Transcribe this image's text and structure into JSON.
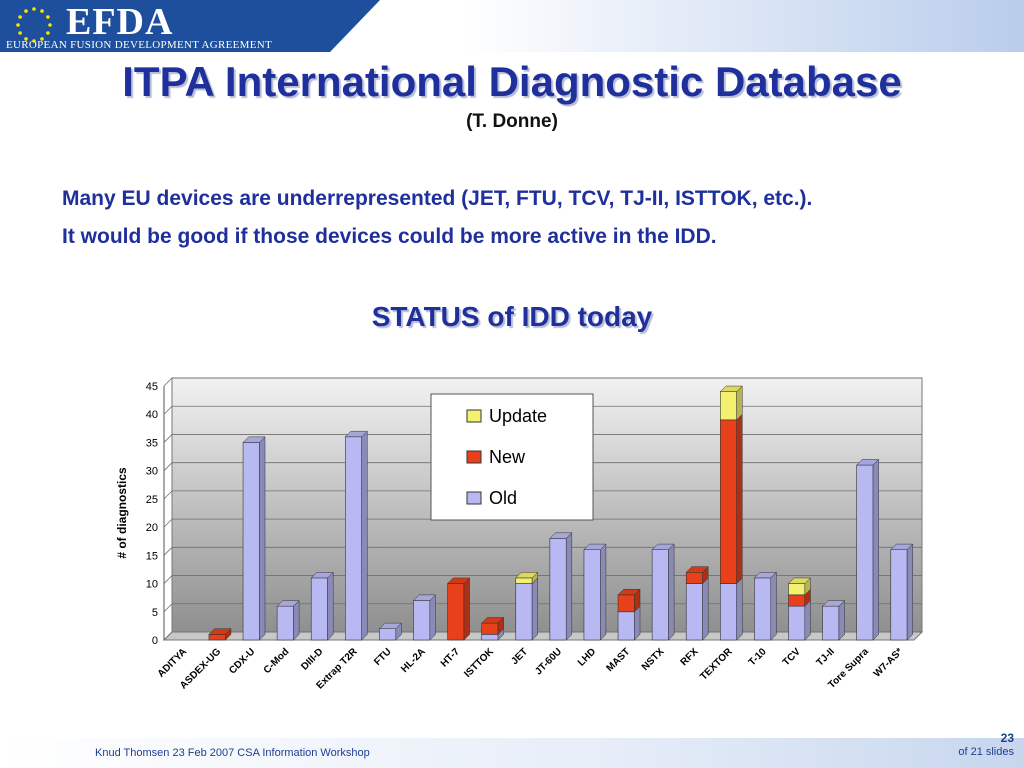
{
  "header": {
    "logo_text": "EFDA",
    "logo_subtitle": "EUROPEAN FUSION DEVELOPMENT AGREEMENT"
  },
  "slide": {
    "title": "ITPA International Diagnostic Database",
    "author": "(T. Donne)",
    "note_line1": "Many EU devices are underrepresented (JET, FTU, TCV, TJ-II, ISTTOK, etc.).",
    "note_line2": "It would be good if those devices could be more active in the IDD.",
    "chart_heading": "STATUS of IDD today"
  },
  "footer": {
    "left": "Knud Thomsen 23 Feb 2007 CSA Information Workshop",
    "page_number": "23",
    "page_of": "of 21 slides"
  },
  "chart_data": {
    "type": "bar",
    "stacked": true,
    "categories": [
      "ADITYA",
      "ASDEX-UG",
      "CDX-U",
      "C-Mod",
      "DIII-D",
      "Extrap T2R",
      "FTU",
      "HL-2A",
      "HT-7",
      "ISTTOK",
      "JET",
      "JT-60U",
      "LHD",
      "MAST",
      "NSTX",
      "RFX",
      "TEXTOR",
      "T-10",
      "TCV",
      "TJ-II",
      "Tore Supra",
      "W7-AS*"
    ],
    "series": [
      {
        "name": "Old",
        "color": "#b8b8f2",
        "values": [
          0,
          0,
          35,
          6,
          11,
          36,
          2,
          7,
          0,
          1,
          10,
          18,
          16,
          5,
          16,
          10,
          10,
          11,
          6,
          6,
          31,
          16
        ]
      },
      {
        "name": "New",
        "color": "#e8401a",
        "values": [
          0,
          1,
          0,
          0,
          0,
          0,
          0,
          0,
          10,
          2,
          0,
          0,
          0,
          3,
          0,
          2,
          29,
          0,
          2,
          0,
          0,
          0
        ]
      },
      {
        "name": "Update",
        "color": "#f4f070",
        "values": [
          0,
          0,
          0,
          0,
          0,
          0,
          0,
          0,
          0,
          0,
          1,
          0,
          0,
          0,
          0,
          0,
          5,
          0,
          2,
          0,
          0,
          0
        ]
      }
    ],
    "legend_order": [
      "Update",
      "New",
      "Old"
    ],
    "legend_position": "top-left",
    "ylabel": "# of diagnostics",
    "xlabel": "",
    "ylim": [
      0,
      45
    ],
    "yticks": [
      0,
      5,
      10,
      15,
      20,
      25,
      30,
      35,
      40,
      45
    ],
    "grid": true
  }
}
